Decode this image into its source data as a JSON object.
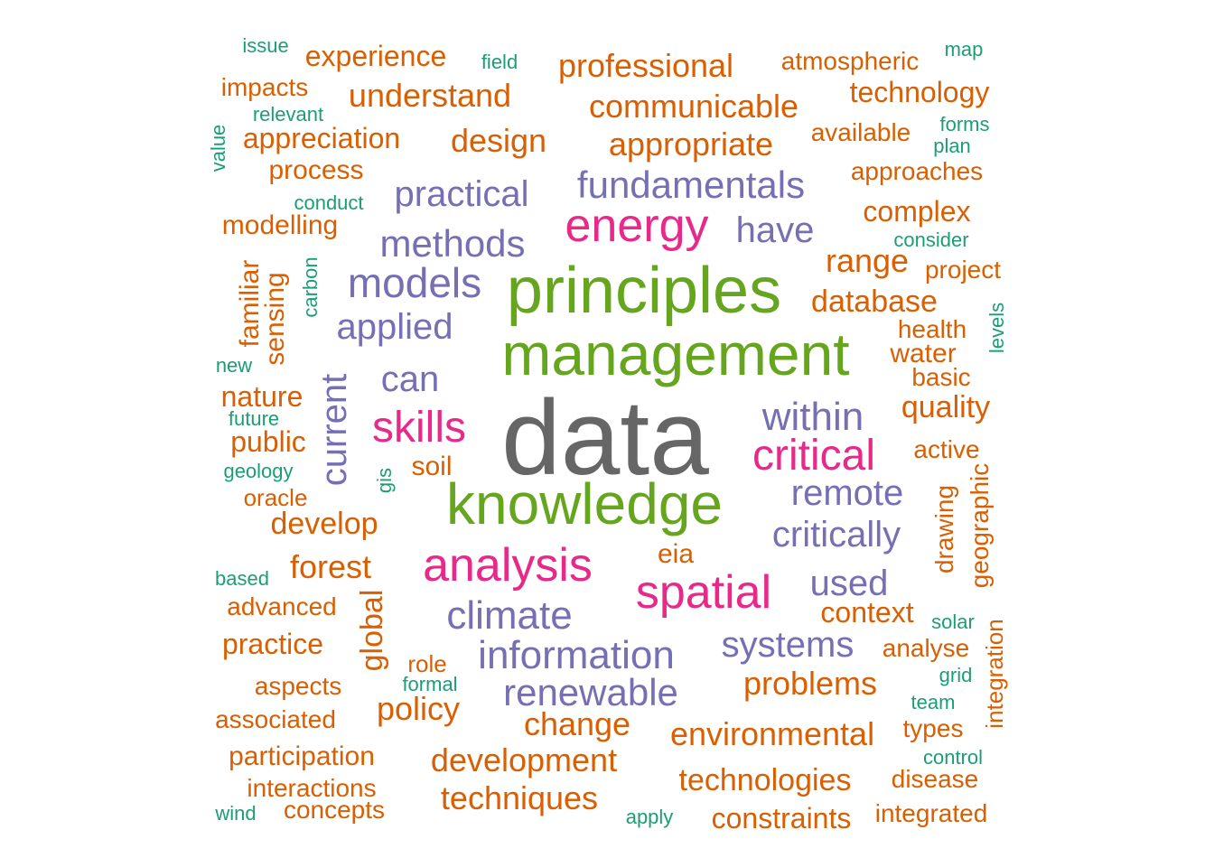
{
  "colors": {
    "grey": "#666666",
    "green": "#66a61e",
    "pink": "#e7298a",
    "purple": "#7570b3",
    "orange": "#d95f02",
    "teal": "#1b9e77"
  },
  "words": [
    {
      "text": "data",
      "color": "grey"
    },
    {
      "text": "principles",
      "color": "green"
    },
    {
      "text": "management",
      "color": "green"
    },
    {
      "text": "knowledge",
      "color": "green"
    },
    {
      "text": "energy",
      "color": "pink"
    },
    {
      "text": "analysis",
      "color": "pink"
    },
    {
      "text": "spatial",
      "color": "pink"
    },
    {
      "text": "skills",
      "color": "pink"
    },
    {
      "text": "critical",
      "color": "pink"
    },
    {
      "text": "methods",
      "color": "purple"
    },
    {
      "text": "models",
      "color": "purple"
    },
    {
      "text": "information",
      "color": "purple"
    },
    {
      "text": "fundamentals",
      "color": "purple"
    },
    {
      "text": "practical",
      "color": "purple"
    },
    {
      "text": "applied",
      "color": "purple"
    },
    {
      "text": "climate",
      "color": "purple"
    },
    {
      "text": "renewable",
      "color": "purple"
    },
    {
      "text": "systems",
      "color": "purple"
    },
    {
      "text": "critically",
      "color": "purple"
    },
    {
      "text": "remote",
      "color": "purple"
    },
    {
      "text": "within",
      "color": "purple"
    },
    {
      "text": "have",
      "color": "purple"
    },
    {
      "text": "used",
      "color": "purple"
    },
    {
      "text": "can",
      "color": "purple"
    },
    {
      "text": "current",
      "color": "purple"
    },
    {
      "text": "professional",
      "color": "orange"
    },
    {
      "text": "communicable",
      "color": "orange"
    },
    {
      "text": "appropriate",
      "color": "orange"
    },
    {
      "text": "understand",
      "color": "orange"
    },
    {
      "text": "design",
      "color": "orange"
    },
    {
      "text": "experience",
      "color": "orange"
    },
    {
      "text": "technology",
      "color": "orange"
    },
    {
      "text": "atmospheric",
      "color": "orange"
    },
    {
      "text": "appreciation",
      "color": "orange"
    },
    {
      "text": "impacts",
      "color": "orange"
    },
    {
      "text": "process",
      "color": "orange"
    },
    {
      "text": "available",
      "color": "orange"
    },
    {
      "text": "approaches",
      "color": "orange"
    },
    {
      "text": "complex",
      "color": "orange"
    },
    {
      "text": "modelling",
      "color": "orange"
    },
    {
      "text": "range",
      "color": "orange"
    },
    {
      "text": "project",
      "color": "orange"
    },
    {
      "text": "database",
      "color": "orange"
    },
    {
      "text": "familiar",
      "color": "orange"
    },
    {
      "text": "sensing",
      "color": "orange"
    },
    {
      "text": "health",
      "color": "orange"
    },
    {
      "text": "water",
      "color": "orange"
    },
    {
      "text": "basic",
      "color": "orange"
    },
    {
      "text": "nature",
      "color": "orange"
    },
    {
      "text": "quality",
      "color": "orange"
    },
    {
      "text": "public",
      "color": "orange"
    },
    {
      "text": "active",
      "color": "orange"
    },
    {
      "text": "soil",
      "color": "orange"
    },
    {
      "text": "oracle",
      "color": "orange"
    },
    {
      "text": "develop",
      "color": "orange"
    },
    {
      "text": "drawing",
      "color": "orange"
    },
    {
      "text": "geographic",
      "color": "orange"
    },
    {
      "text": "forest",
      "color": "orange"
    },
    {
      "text": "eia",
      "color": "orange"
    },
    {
      "text": "global",
      "color": "orange"
    },
    {
      "text": "advanced",
      "color": "orange"
    },
    {
      "text": "context",
      "color": "orange"
    },
    {
      "text": "practice",
      "color": "orange"
    },
    {
      "text": "analyse",
      "color": "orange"
    },
    {
      "text": "integration",
      "color": "orange"
    },
    {
      "text": "role",
      "color": "orange"
    },
    {
      "text": "problems",
      "color": "orange"
    },
    {
      "text": "aspects",
      "color": "orange"
    },
    {
      "text": "policy",
      "color": "orange"
    },
    {
      "text": "associated",
      "color": "orange"
    },
    {
      "text": "change",
      "color": "orange"
    },
    {
      "text": "environmental",
      "color": "orange"
    },
    {
      "text": "types",
      "color": "orange"
    },
    {
      "text": "participation",
      "color": "orange"
    },
    {
      "text": "development",
      "color": "orange"
    },
    {
      "text": "technologies",
      "color": "orange"
    },
    {
      "text": "disease",
      "color": "orange"
    },
    {
      "text": "interactions",
      "color": "orange"
    },
    {
      "text": "techniques",
      "color": "orange"
    },
    {
      "text": "integrated",
      "color": "orange"
    },
    {
      "text": "concepts",
      "color": "orange"
    },
    {
      "text": "constraints",
      "color": "orange"
    },
    {
      "text": "issue",
      "color": "teal"
    },
    {
      "text": "field",
      "color": "teal"
    },
    {
      "text": "map",
      "color": "teal"
    },
    {
      "text": "relevant",
      "color": "teal"
    },
    {
      "text": "forms",
      "color": "teal"
    },
    {
      "text": "plan",
      "color": "teal"
    },
    {
      "text": "value",
      "color": "teal"
    },
    {
      "text": "conduct",
      "color": "teal"
    },
    {
      "text": "consider",
      "color": "teal"
    },
    {
      "text": "carbon",
      "color": "teal"
    },
    {
      "text": "levels",
      "color": "teal"
    },
    {
      "text": "new",
      "color": "teal"
    },
    {
      "text": "future",
      "color": "teal"
    },
    {
      "text": "geology",
      "color": "teal"
    },
    {
      "text": "gis",
      "color": "teal"
    },
    {
      "text": "based",
      "color": "teal"
    },
    {
      "text": "solar",
      "color": "teal"
    },
    {
      "text": "grid",
      "color": "teal"
    },
    {
      "text": "formal",
      "color": "teal"
    },
    {
      "text": "team",
      "color": "teal"
    },
    {
      "text": "control",
      "color": "teal"
    },
    {
      "text": "wind",
      "color": "teal"
    },
    {
      "text": "apply",
      "color": "teal"
    }
  ]
}
